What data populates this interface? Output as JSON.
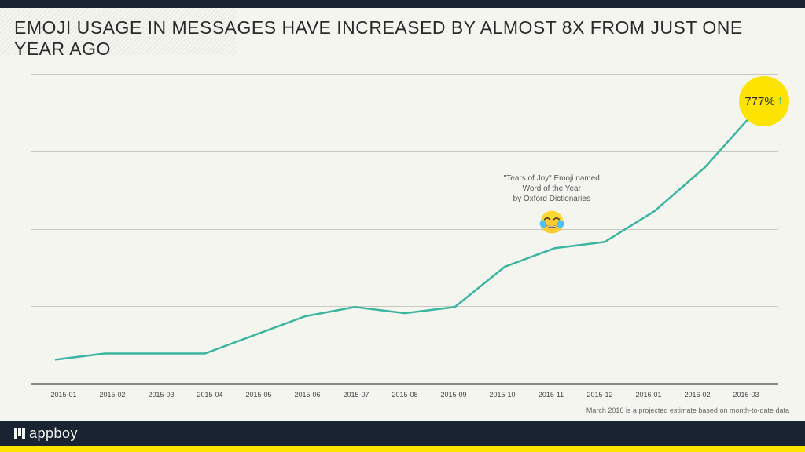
{
  "header": {
    "title": "EMOJI USAGE IN MESSAGES HAVE INCREASED BY ALMOST 8X FROM JUST ONE YEAR AGO"
  },
  "chart": {
    "type": "line",
    "x_labels": [
      "2015-01",
      "2015-02",
      "2015-03",
      "2015-04",
      "2015-05",
      "2015-06",
      "2015-07",
      "2015-08",
      "2015-09",
      "2015-10",
      "2015-11",
      "2015-12",
      "2016-01",
      "2016-02",
      "2016-03"
    ],
    "values": [
      8,
      10,
      10,
      10,
      16,
      22,
      25,
      23,
      25,
      38,
      44,
      46,
      56,
      70,
      88
    ],
    "ylim": [
      0,
      100
    ],
    "gridlines_y": [
      25,
      50,
      75,
      100
    ],
    "line_color": "#3cb5a0",
    "line_width": 2.5,
    "background_color": "#f5f5f0",
    "grid_color": "#c8c8c0",
    "axis_color": "#888888",
    "label_fontsize": 9,
    "label_color": "#444444"
  },
  "callout": {
    "line1": "\"Tears of Joy\" Emoji named",
    "line2": "Word of the Year",
    "line3": "by Oxford Dictionaries",
    "x_index": 10,
    "emoji_colors": {
      "face": "#fdd835",
      "face_shadow": "#f9a825",
      "tear": "#4fc3f7",
      "mouth": "#5d4037",
      "teeth": "#ffffff"
    }
  },
  "badge": {
    "text": "777%",
    "arrow": "↑",
    "background": "#fde400",
    "arrow_color": "#3cb5a0"
  },
  "footnote": "March 2016 is a projected estimate based on month-to-date data",
  "footer": {
    "brand": "appboy",
    "accent_color": "#fde400",
    "dark_bar": "#1a2332"
  }
}
